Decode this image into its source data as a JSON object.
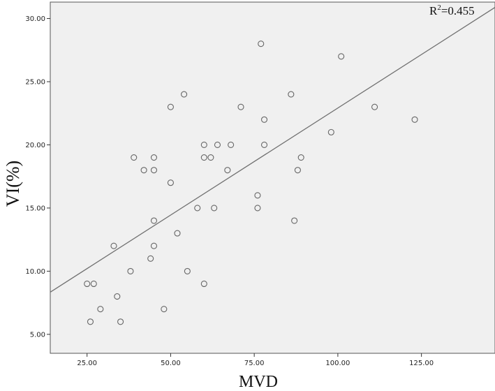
{
  "chart_data": {
    "type": "scatter",
    "xlabel": "MVD",
    "ylabel": "VI(%)",
    "xlim": [
      14,
      147
    ],
    "ylim": [
      3.5,
      31.3
    ],
    "xticks": [
      25,
      50,
      75,
      100,
      125
    ],
    "yticks": [
      5,
      10,
      15,
      20,
      25,
      30
    ],
    "xtick_labels": [
      "25.00",
      "50.00",
      "75.00",
      "100.00",
      "125.00"
    ],
    "ytick_labels": [
      "5.00",
      "10.00",
      "15.00",
      "20.00",
      "25.00",
      "30.00"
    ],
    "annotation": {
      "label": "R",
      "sup": "2",
      "value": "=0.455"
    },
    "fit_line": {
      "x": [
        14,
        147
      ],
      "y": [
        8.34,
        30.88
      ]
    },
    "grid": false,
    "plot_background": "#f0f0f0",
    "marker_color": "#666666",
    "line_color": "#707070",
    "points": [
      {
        "x": 25,
        "y": 9
      },
      {
        "x": 27,
        "y": 9
      },
      {
        "x": 26,
        "y": 6
      },
      {
        "x": 29,
        "y": 7
      },
      {
        "x": 33,
        "y": 12
      },
      {
        "x": 34,
        "y": 8
      },
      {
        "x": 35,
        "y": 6
      },
      {
        "x": 38,
        "y": 10
      },
      {
        "x": 39,
        "y": 19
      },
      {
        "x": 42,
        "y": 18
      },
      {
        "x": 44,
        "y": 11
      },
      {
        "x": 45,
        "y": 12
      },
      {
        "x": 45,
        "y": 14
      },
      {
        "x": 45,
        "y": 18
      },
      {
        "x": 45,
        "y": 19
      },
      {
        "x": 48,
        "y": 7
      },
      {
        "x": 50,
        "y": 17
      },
      {
        "x": 50,
        "y": 23
      },
      {
        "x": 52,
        "y": 13
      },
      {
        "x": 54,
        "y": 24
      },
      {
        "x": 55,
        "y": 10
      },
      {
        "x": 58,
        "y": 15
      },
      {
        "x": 60,
        "y": 9
      },
      {
        "x": 60,
        "y": 19
      },
      {
        "x": 60,
        "y": 20
      },
      {
        "x": 62,
        "y": 19
      },
      {
        "x": 63,
        "y": 15
      },
      {
        "x": 64,
        "y": 20
      },
      {
        "x": 67,
        "y": 18
      },
      {
        "x": 68,
        "y": 20
      },
      {
        "x": 71,
        "y": 23
      },
      {
        "x": 76,
        "y": 15
      },
      {
        "x": 76,
        "y": 16
      },
      {
        "x": 77,
        "y": 28
      },
      {
        "x": 78,
        "y": 20
      },
      {
        "x": 78,
        "y": 22
      },
      {
        "x": 86,
        "y": 24
      },
      {
        "x": 87,
        "y": 14
      },
      {
        "x": 88,
        "y": 18
      },
      {
        "x": 89,
        "y": 19
      },
      {
        "x": 98,
        "y": 21
      },
      {
        "x": 101,
        "y": 27
      },
      {
        "x": 111,
        "y": 23
      },
      {
        "x": 123,
        "y": 22
      }
    ]
  }
}
